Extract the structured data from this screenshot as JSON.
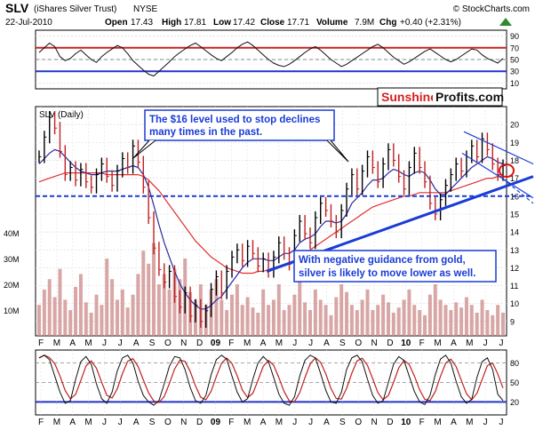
{
  "header": {
    "symbol": "SLV",
    "name": "(iShares Silver Trust)",
    "exchange": "NYSE",
    "watermark": "© StockCharts.com",
    "date": "22-Jul-2010",
    "open_label": "Open",
    "open": "17.43",
    "high_label": "High",
    "high": "17.81",
    "low_label": "Low",
    "low": "17.42",
    "close_label": "Close",
    "close": "17.71",
    "volume_label": "Volume",
    "volume": "7.9M",
    "chg_label": "Chg",
    "chg": "+0.40 (+2.31%)"
  },
  "logo": {
    "part1": "Sunshine",
    "part2": "Profits.com"
  },
  "colors": {
    "price": "#000000",
    "ma_fast": "#2a2aa0",
    "ma_slow": "#e03030",
    "trend": "#1a3cd6",
    "annotation_border": "#1a3cd6",
    "annotation_text": "#1a3cd6",
    "rsi_upper": "#cc2222",
    "rsi_lower": "#2233cc",
    "volume": "#cc8888"
  },
  "annotations": [
    {
      "lines": [
        "The $16 level used to stop declines",
        "many times in the past."
      ]
    },
    {
      "lines": [
        "With negative guidance from gold,",
        "silver is likely to move lower as well."
      ]
    }
  ],
  "chart_data": [
    {
      "type": "line",
      "name": "rsi-panel",
      "y_ticks": [
        90,
        70,
        50,
        30,
        10
      ],
      "ylim": [
        0,
        100
      ],
      "reference_levels": [
        70,
        30
      ],
      "values": [
        62,
        70,
        78,
        72,
        55,
        48,
        52,
        60,
        66,
        58,
        50,
        45,
        55,
        62,
        68,
        74,
        70,
        60,
        48,
        40,
        32,
        25,
        22,
        30,
        38,
        46,
        55,
        62,
        68,
        74,
        78,
        72,
        65,
        58,
        52,
        48,
        55,
        62,
        70,
        76,
        80,
        74,
        66,
        58,
        50,
        44,
        40,
        38,
        42,
        48,
        55,
        62,
        68,
        72,
        66,
        58,
        50,
        44,
        38,
        42,
        48,
        54,
        60,
        66,
        72,
        76,
        70,
        62,
        54,
        48,
        42,
        46,
        52,
        58,
        64,
        68,
        62,
        56,
        50,
        46,
        50,
        56,
        62,
        68,
        66,
        58,
        52,
        48,
        44,
        52
      ]
    },
    {
      "type": "line",
      "name": "price-panel",
      "title": "SLV (Daily)",
      "y_ticks": [
        20,
        19,
        18,
        17,
        16,
        15,
        14,
        13,
        12,
        11,
        10,
        9
      ],
      "volume_ticks": [
        "40M",
        "30M",
        "20M",
        "10M"
      ],
      "ylim": [
        8.2,
        21.0
      ],
      "x_labels": [
        "F",
        "M",
        "A",
        "M",
        "J",
        "J",
        "A",
        "S",
        "O",
        "N",
        "D",
        "09",
        "F",
        "M",
        "A",
        "M",
        "J",
        "J",
        "A",
        "S",
        "O",
        "N",
        "D",
        "10",
        "F",
        "M",
        "A",
        "M",
        "J",
        "J"
      ],
      "series": [
        {
          "values": [
            18.2,
            19.3,
            20.4,
            19.8,
            18.5,
            17.2,
            17.6,
            16.9,
            17.5,
            16.8,
            16.5,
            17.2,
            17.8,
            17.1,
            16.6,
            17.4,
            18.1,
            17.6,
            18.8,
            17.9,
            16.5,
            14.8,
            13.1,
            11.9,
            11.2,
            11.8,
            10.4,
            9.8,
            10.6,
            9.3,
            9.9,
            9.0,
            9.6,
            10.8,
            11.5,
            10.6,
            11.8,
            12.6,
            13.0,
            12.4,
            13.2,
            12.8,
            12.1,
            12.5,
            11.8,
            12.6,
            13.4,
            12.8,
            12.2,
            13.8,
            14.6,
            13.9,
            13.4,
            14.8,
            15.6,
            15.2,
            14.6,
            14.0,
            15.2,
            16.4,
            17.2,
            16.4,
            17.4,
            18.2,
            17.6,
            16.8,
            17.8,
            18.6,
            18.0,
            17.1,
            16.4,
            17.6,
            18.4,
            17.6,
            16.8,
            15.6,
            15.0,
            15.8,
            16.6,
            17.2,
            17.8,
            17.4,
            18.2,
            18.8,
            18.2,
            19.2,
            18.6,
            17.8,
            17.2,
            17.7
          ]
        },
        {
          "values": [
            17.8,
            18.1,
            18.4,
            18.6,
            18.5,
            18.2,
            17.9,
            17.6,
            17.4,
            17.3,
            17.2,
            17.2,
            17.3,
            17.4,
            17.4,
            17.4,
            17.5,
            17.6,
            17.7,
            17.6,
            17.2,
            16.5,
            15.5,
            14.4,
            13.4,
            12.6,
            11.8,
            11.1,
            10.6,
            10.2,
            9.9,
            9.7,
            9.7,
            9.9,
            10.2,
            10.4,
            10.8,
            11.2,
            11.6,
            12.0,
            12.3,
            12.5,
            12.5,
            12.5,
            12.4,
            12.4,
            12.6,
            12.8,
            12.8,
            13.0,
            13.4,
            13.6,
            13.7,
            13.9,
            14.3,
            14.6,
            14.6,
            14.5,
            14.6,
            15.0,
            15.6,
            15.9,
            16.2,
            16.6,
            16.9,
            16.9,
            17.0,
            17.3,
            17.5,
            17.4,
            17.2,
            17.1,
            17.3,
            17.4,
            17.3,
            16.9,
            16.4,
            16.1,
            16.1,
            16.4,
            16.7,
            17.0,
            17.3,
            17.6,
            17.8,
            18.0,
            18.2,
            18.1,
            17.9,
            17.8
          ]
        },
        {
          "values": [
            16.8,
            16.9,
            17.0,
            17.1,
            17.2,
            17.3,
            17.3,
            17.3,
            17.3,
            17.3,
            17.3,
            17.3,
            17.3,
            17.2,
            17.2,
            17.2,
            17.2,
            17.2,
            17.2,
            17.2,
            17.1,
            16.9,
            16.6,
            16.3,
            15.9,
            15.5,
            15.1,
            14.7,
            14.3,
            13.9,
            13.5,
            13.2,
            12.9,
            12.6,
            12.4,
            12.2,
            12.0,
            11.9,
            11.8,
            11.7,
            11.7,
            11.7,
            11.8,
            11.8,
            11.9,
            12.0,
            12.1,
            12.2,
            12.3,
            12.4,
            12.6,
            12.8,
            13.0,
            13.2,
            13.4,
            13.6,
            13.8,
            14.0,
            14.2,
            14.4,
            14.6,
            14.8,
            15.0,
            15.2,
            15.4,
            15.5,
            15.6,
            15.7,
            15.8,
            15.9,
            16.0,
            16.0,
            16.1,
            16.2,
            16.2,
            16.2,
            16.2,
            16.2,
            16.2,
            16.3,
            16.4,
            16.5,
            16.6,
            16.7,
            16.8,
            16.9,
            17.0,
            17.0,
            17.1,
            17.1
          ]
        }
      ],
      "volume": [
        12,
        18,
        22,
        15,
        26,
        14,
        10,
        19,
        24,
        13,
        9,
        16,
        12,
        30,
        22,
        14,
        18,
        11,
        16,
        24,
        33,
        28,
        36,
        20,
        24,
        18,
        26,
        22,
        30,
        17,
        14,
        20,
        12,
        18,
        22,
        14,
        10,
        16,
        20,
        12,
        15,
        11,
        9,
        18,
        12,
        14,
        20,
        10,
        12,
        16,
        22,
        13,
        10,
        18,
        14,
        12,
        8,
        15,
        20,
        17,
        12,
        10,
        14,
        18,
        10,
        12,
        16,
        13,
        9,
        11,
        14,
        18,
        12,
        10,
        8,
        16,
        20,
        14,
        12,
        10,
        13,
        11,
        15,
        12,
        9,
        14,
        10,
        8,
        12,
        9
      ]
    },
    {
      "type": "line",
      "name": "stochastic-panel",
      "y_ticks": [
        80,
        50,
        20
      ],
      "ylim": [
        0,
        100
      ],
      "reference_levels": [
        80,
        20
      ],
      "x_labels": [
        "F",
        "M",
        "A",
        "M",
        "J",
        "J",
        "A",
        "S",
        "O",
        "N",
        "D",
        "09",
        "F",
        "M",
        "A",
        "M",
        "J",
        "J",
        "A",
        "S",
        "O",
        "N",
        "D",
        "10",
        "F",
        "M",
        "A",
        "M",
        "J",
        "J"
      ],
      "values": [
        88,
        92,
        85,
        60,
        35,
        18,
        22,
        55,
        82,
        90,
        78,
        48,
        25,
        18,
        35,
        68,
        88,
        92,
        80,
        52,
        30,
        20,
        15,
        22,
        48,
        75,
        90,
        88,
        70,
        42,
        22,
        18,
        30,
        62,
        85,
        92,
        86,
        60,
        35,
        20,
        25,
        55,
        80,
        90,
        82,
        58,
        32,
        18,
        15,
        28,
        60,
        84,
        92,
        88,
        64,
        38,
        20,
        18,
        35,
        70,
        88,
        92,
        82,
        55,
        30,
        18,
        22,
        50,
        78,
        90,
        84,
        60,
        36,
        20,
        16,
        30,
        62,
        86,
        92,
        80,
        52,
        28,
        18,
        24,
        58,
        82,
        88,
        70,
        32,
        22
      ]
    }
  ]
}
